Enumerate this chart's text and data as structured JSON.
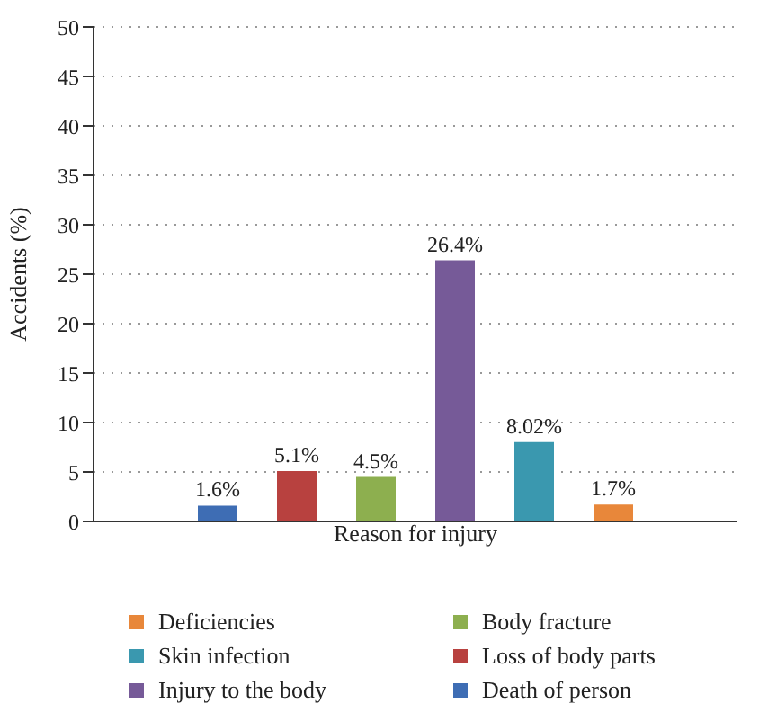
{
  "chart_data": {
    "type": "bar",
    "xlabel": "Reason for injury",
    "ylabel": "Accidents (%)",
    "categories": [
      null
    ],
    "series": [
      {
        "name": "Death of person",
        "color": "#3e6db4",
        "values": [
          1.6
        ],
        "value_labels": [
          "1.6%"
        ]
      },
      {
        "name": "Loss of body parts",
        "color": "#b8413f",
        "values": [
          5.1
        ],
        "value_labels": [
          "5.1%"
        ]
      },
      {
        "name": "Body fracture",
        "color": "#8daf4f",
        "values": [
          4.5
        ],
        "value_labels": [
          "4.5%"
        ]
      },
      {
        "name": "Injury to the body",
        "color": "#765a98",
        "values": [
          26.4
        ],
        "value_labels": [
          "26.4%"
        ]
      },
      {
        "name": "Skin infection",
        "color": "#3a98af",
        "values": [
          8.02
        ],
        "value_labels": [
          "8.02%"
        ]
      },
      {
        "name": "Deficiencies",
        "color": "#e8873a",
        "values": [
          1.7
        ],
        "value_labels": [
          "1.7%"
        ]
      }
    ],
    "ylim": [
      0,
      50
    ],
    "yticks": [
      0,
      5,
      10,
      15,
      20,
      25,
      30,
      35,
      40,
      45,
      50
    ],
    "grid": "y",
    "legend": "bottom"
  }
}
